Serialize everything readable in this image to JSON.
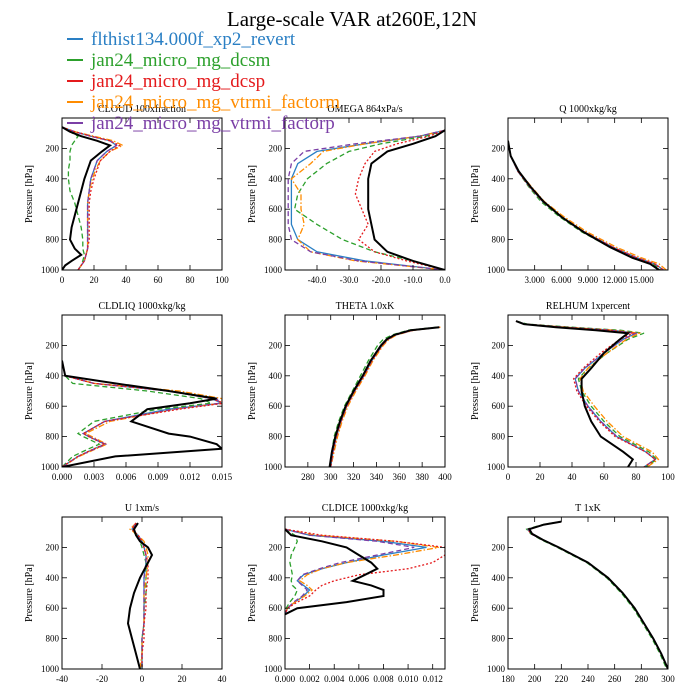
{
  "title": "Large-scale VAR at260E,12N",
  "legend": [
    {
      "label": "flthist134.000f_xp2_revert",
      "color": "#2a7fc4",
      "dash": "solid"
    },
    {
      "label": "jan24_micro_mg_dcsm",
      "color": "#2ca02c",
      "dash": "dash"
    },
    {
      "label": "jan24_micro_mg_dcsp",
      "color": "#e41a1c",
      "dash": "dot"
    },
    {
      "label": "jan24_micro_mg_vtrmi_factorm",
      "color": "#ff8c00",
      "dash": "dashdot"
    },
    {
      "label": "jan24_micro_mg_vtrmi_factorp",
      "color": "#7b3fa6",
      "dash": "dash"
    }
  ],
  "control_color": "#000000",
  "ylabel": "Pressure [hPa]",
  "chart_data": [
    {
      "type": "line",
      "title": "CLOUD  100xfraction",
      "xlim": [
        0,
        100
      ],
      "xticks": [
        0,
        20,
        40,
        60,
        80,
        100
      ],
      "xticklabels": [
        "0",
        "20",
        "40",
        "60",
        "80",
        "100"
      ],
      "ylim": [
        0,
        1000
      ],
      "yticks": [
        200,
        400,
        600,
        800,
        1000
      ],
      "p": [
        60,
        90,
        120,
        150,
        180,
        220,
        280,
        340,
        400,
        480,
        560,
        640,
        720,
        800,
        860,
        900,
        940,
        970,
        1000
      ],
      "control": [
        0,
        5,
        12,
        22,
        30,
        25,
        18,
        16,
        14,
        12,
        10,
        8,
        6,
        5,
        8,
        12,
        6,
        2,
        0
      ],
      "series": [
        [
          0,
          8,
          18,
          30,
          34,
          28,
          22,
          20,
          18,
          17,
          16,
          16,
          16,
          16,
          16,
          15,
          14,
          12,
          10
        ],
        [
          0,
          5,
          10,
          8,
          6,
          5,
          5,
          4,
          4,
          5,
          8,
          10,
          12,
          13,
          13,
          14,
          13,
          12,
          10
        ],
        [
          0,
          8,
          18,
          30,
          36,
          30,
          24,
          22,
          20,
          18,
          17,
          17,
          17,
          17,
          16,
          15,
          14,
          12,
          10
        ],
        [
          0,
          8,
          20,
          32,
          38,
          30,
          24,
          21,
          19,
          17,
          16,
          16,
          16,
          16,
          16,
          15,
          14,
          12,
          10
        ],
        [
          0,
          8,
          18,
          30,
          34,
          28,
          22,
          20,
          18,
          17,
          16,
          16,
          16,
          16,
          16,
          15,
          14,
          12,
          10
        ]
      ]
    },
    {
      "type": "line",
      "title": "OMEGA  864xPa/s",
      "xlim": [
        -50,
        0
      ],
      "xticks": [
        -40,
        -30,
        -20,
        -10,
        0
      ],
      "xticklabels": [
        "-40.0",
        "-30.0",
        "-20.0",
        "-10.0",
        "0.0"
      ],
      "ylim": [
        0,
        1000
      ],
      "yticks": [
        200,
        400,
        600,
        800,
        1000
      ],
      "p": [
        80,
        120,
        170,
        220,
        300,
        400,
        500,
        600,
        700,
        800,
        880,
        940,
        1000
      ],
      "control": [
        0,
        -3,
        -10,
        -18,
        -23,
        -24,
        -24,
        -24,
        -23,
        -22,
        -18,
        -10,
        0
      ],
      "series": [
        [
          0,
          -8,
          -25,
          -40,
          -46,
          -48,
          -48,
          -48,
          -48,
          -46,
          -40,
          -25,
          0
        ],
        [
          0,
          -6,
          -20,
          -30,
          -37,
          -43,
          -46,
          -47,
          -40,
          -32,
          -22,
          -10,
          0
        ],
        [
          0,
          -5,
          -15,
          -22,
          -25,
          -27,
          -28,
          -26,
          -24,
          -27,
          -22,
          -12,
          0
        ],
        [
          0,
          -8,
          -25,
          -38,
          -42,
          -48,
          -45,
          -45,
          -44,
          -46,
          -42,
          -28,
          0
        ],
        [
          0,
          -8,
          -28,
          -44,
          -48,
          -49,
          -49,
          -49,
          -49,
          -48,
          -42,
          -27,
          0
        ]
      ]
    },
    {
      "type": "line",
      "title": "Q  1000xkg/kg",
      "xlim": [
        0,
        18
      ],
      "xticks": [
        3,
        6,
        9,
        12,
        15
      ],
      "xticklabels": [
        "3.000",
        "6.000",
        "9.000",
        "12.000",
        "15.000"
      ],
      "ylim": [
        0,
        1000
      ],
      "yticks": [
        200,
        400,
        600,
        800,
        1000
      ],
      "p": [
        150,
        250,
        350,
        450,
        550,
        650,
        750,
        850,
        920,
        960,
        1000
      ],
      "control": [
        0,
        0.3,
        1.2,
        2.5,
        4,
        6,
        8.5,
        11.5,
        14,
        16,
        17
      ],
      "series": [
        [
          0,
          0.3,
          1.1,
          2.4,
          3.9,
          6,
          8.6,
          11.8,
          14.5,
          16.5,
          17.5
        ],
        [
          0,
          0.3,
          1.1,
          2.3,
          3.7,
          5.8,
          8.3,
          11.5,
          14.2,
          16.3,
          17.2
        ],
        [
          0,
          0.3,
          1.1,
          2.4,
          3.9,
          6,
          8.6,
          11.8,
          14.5,
          16.5,
          17.5
        ],
        [
          0,
          0.3,
          1.2,
          2.6,
          4.1,
          6.3,
          8.9,
          12.2,
          15,
          17,
          17.8
        ],
        [
          0,
          0.3,
          1.1,
          2.4,
          3.9,
          6,
          8.6,
          11.8,
          14.5,
          16.5,
          17.5
        ]
      ]
    },
    {
      "type": "line",
      "title": "CLDLIQ  1000xkg/kg",
      "xlim": [
        0,
        0.015
      ],
      "xticks": [
        0,
        0.003,
        0.006,
        0.009,
        0.012,
        0.015
      ],
      "xticklabels": [
        "0.000",
        "0.003",
        "0.006",
        "0.009",
        "0.012",
        "0.015"
      ],
      "ylim": [
        0,
        1000
      ],
      "yticks": [
        200,
        400,
        600,
        800,
        1000
      ],
      "p": [
        300,
        400,
        450,
        500,
        550,
        580,
        620,
        700,
        780,
        800,
        850,
        880,
        930,
        1000
      ],
      "control": [
        0,
        0.0003,
        0.005,
        0.01,
        0.0145,
        0.012,
        0.008,
        0.0065,
        0.01,
        0.012,
        0.0145,
        0.015,
        0.005,
        0
      ],
      "series": [
        [
          0,
          0.0003,
          0.003,
          0.01,
          0.014,
          0.015,
          0.01,
          0.004,
          0.002,
          0.0025,
          0.004,
          0.003,
          0.0015,
          0
        ],
        [
          0,
          0.0003,
          0.001,
          0.008,
          0.013,
          0.014,
          0.009,
          0.003,
          0.0015,
          0.002,
          0.0035,
          0.0025,
          0.001,
          0
        ],
        [
          0,
          0.0003,
          0.003,
          0.01,
          0.014,
          0.0152,
          0.011,
          0.004,
          0.002,
          0.0025,
          0.004,
          0.003,
          0.0015,
          0
        ],
        [
          0,
          0.0003,
          0.003,
          0.011,
          0.015,
          0.015,
          0.0105,
          0.0045,
          0.0022,
          0.0028,
          0.0042,
          0.0032,
          0.0016,
          0
        ],
        [
          0,
          0.0003,
          0.003,
          0.01,
          0.0145,
          0.0148,
          0.0105,
          0.004,
          0.002,
          0.0026,
          0.0041,
          0.0031,
          0.0015,
          0
        ]
      ]
    },
    {
      "type": "line",
      "title": "THETA  1.0xK",
      "xlim": [
        260,
        400
      ],
      "xticks": [
        280,
        300,
        320,
        340,
        360,
        380,
        400
      ],
      "xticklabels": [
        "280",
        "300",
        "320",
        "340",
        "360",
        "380",
        "400"
      ],
      "ylim": [
        0,
        1000
      ],
      "yticks": [
        200,
        400,
        600,
        800,
        1000
      ],
      "p": [
        80,
        100,
        130,
        160,
        200,
        300,
        400,
        500,
        600,
        700,
        800,
        900,
        1000
      ],
      "control": [
        395,
        370,
        356,
        349,
        344,
        335,
        328,
        320,
        313,
        308,
        304,
        301,
        299
      ],
      "series": [
        [
          395,
          372,
          357,
          350,
          345,
          336,
          329,
          321,
          314,
          309,
          305,
          302,
          300
        ],
        [
          393,
          368,
          354,
          346,
          341,
          333,
          326,
          319,
          312,
          307,
          303,
          301,
          299
        ],
        [
          395,
          372,
          357,
          350,
          345,
          336,
          329,
          321,
          314,
          309,
          305,
          302,
          300
        ],
        [
          396,
          373,
          358,
          351,
          346,
          337,
          330,
          322,
          315,
          310,
          306,
          303,
          300
        ],
        [
          395,
          372,
          357,
          350,
          345,
          336,
          329,
          321,
          314,
          309,
          305,
          302,
          300
        ]
      ]
    },
    {
      "type": "line",
      "title": "RELHUM  1xpercent",
      "xlim": [
        0,
        100
      ],
      "xticks": [
        0,
        20,
        40,
        60,
        80,
        100
      ],
      "xticklabels": [
        "0",
        "20",
        "40",
        "60",
        "80",
        "100"
      ],
      "ylim": [
        0,
        1000
      ],
      "yticks": [
        200,
        400,
        600,
        800,
        1000
      ],
      "p": [
        40,
        60,
        80,
        100,
        120,
        160,
        250,
        350,
        420,
        500,
        600,
        700,
        800,
        900,
        950,
        1000
      ],
      "control": [
        5,
        10,
        30,
        55,
        75,
        70,
        60,
        52,
        46,
        46,
        48,
        52,
        58,
        72,
        78,
        75
      ],
      "series": [
        [
          5,
          10,
          35,
          65,
          80,
          72,
          60,
          48,
          42,
          44,
          50,
          58,
          68,
          86,
          92,
          85
        ],
        [
          5,
          12,
          40,
          70,
          85,
          75,
          62,
          50,
          44,
          46,
          52,
          60,
          70,
          88,
          93,
          86
        ],
        [
          5,
          10,
          35,
          62,
          78,
          70,
          58,
          47,
          41,
          43,
          49,
          57,
          67,
          86,
          92,
          85
        ],
        [
          5,
          10,
          36,
          66,
          82,
          74,
          62,
          50,
          45,
          47,
          54,
          62,
          72,
          90,
          94,
          87
        ],
        [
          5,
          10,
          35,
          64,
          80,
          72,
          60,
          48,
          42,
          44,
          50,
          58,
          68,
          86,
          92,
          85
        ]
      ]
    },
    {
      "type": "line",
      "title": "U  1xm/s",
      "xlim": [
        -40,
        40
      ],
      "xticks": [
        -40,
        -20,
        0,
        20,
        40
      ],
      "xticklabels": [
        "-40",
        "-20",
        "0",
        "20",
        "40"
      ],
      "ylim": [
        0,
        1000
      ],
      "yticks": [
        200,
        400,
        600,
        800,
        1000
      ],
      "p": [
        40,
        80,
        120,
        160,
        200,
        250,
        300,
        400,
        500,
        600,
        700,
        800,
        900,
        1000
      ],
      "control": [
        -2,
        -4,
        -3,
        -1,
        3,
        5,
        3,
        -1,
        -4,
        -6,
        -7,
        -5,
        -3,
        -1
      ],
      "series": [
        [
          -3,
          -5,
          -2,
          0,
          1,
          2,
          2,
          1,
          1,
          1,
          1,
          0,
          0,
          0
        ],
        [
          -3,
          -5,
          -3,
          -1,
          0,
          1,
          2,
          2,
          2,
          1,
          1,
          0,
          0,
          0
        ],
        [
          -3,
          -5,
          -2,
          0,
          1,
          2,
          3,
          3,
          2,
          2,
          1,
          1,
          0,
          0
        ],
        [
          -3,
          -6,
          -2,
          1,
          2,
          3,
          3,
          2,
          1,
          1,
          1,
          0,
          0,
          -1
        ],
        [
          -3,
          -5,
          -2,
          0,
          1,
          2,
          2,
          1,
          1,
          1,
          1,
          0,
          0,
          0
        ]
      ]
    },
    {
      "type": "line",
      "title": "CLDICE  1000xkg/kg",
      "xlim": [
        0,
        0.013
      ],
      "xticks": [
        0,
        0.002,
        0.004,
        0.006,
        0.008,
        0.01,
        0.012
      ],
      "xticklabels": [
        "0.000",
        "0.002",
        "0.004",
        "0.006",
        "0.008",
        "0.010",
        "0.012"
      ],
      "ylim": [
        0,
        1000
      ],
      "yticks": [
        200,
        400,
        600,
        800,
        1000
      ],
      "p": [
        80,
        120,
        160,
        200,
        250,
        300,
        340,
        380,
        420,
        450,
        480,
        520,
        560,
        600,
        640
      ],
      "control": [
        0,
        0.0005,
        0.003,
        0.005,
        0.006,
        0.007,
        0.0075,
        0.0065,
        0.0055,
        0.007,
        0.008,
        0.008,
        0.005,
        0.001,
        0
      ],
      "series": [
        [
          0,
          0.002,
          0.008,
          0.0115,
          0.008,
          0.005,
          0.003,
          0.0015,
          0.001,
          0.0015,
          0.002,
          0.0015,
          0.0008,
          0.0002,
          0
        ],
        [
          0,
          0.0008,
          0.001,
          0.0008,
          0.0005,
          0.0004,
          0.0005,
          0.0006,
          0.0005,
          0.0006,
          0.001,
          0.0008,
          0.0004,
          0.0001,
          0
        ],
        [
          0,
          0.003,
          0.009,
          0.013,
          0.013,
          0.012,
          0.01,
          0.006,
          0.004,
          0.003,
          0.0025,
          0.002,
          0.001,
          0.0002,
          0
        ],
        [
          0,
          0.0025,
          0.009,
          0.0125,
          0.009,
          0.005,
          0.003,
          0.0018,
          0.0012,
          0.0018,
          0.0022,
          0.0016,
          0.0008,
          0.0002,
          0
        ],
        [
          0,
          0.002,
          0.0075,
          0.0105,
          0.0075,
          0.0045,
          0.0028,
          0.0014,
          0.001,
          0.0014,
          0.0018,
          0.0014,
          0.0007,
          0.0002,
          0
        ]
      ]
    },
    {
      "type": "line",
      "title": "T  1xK",
      "xlim": [
        180,
        300
      ],
      "xticks": [
        180,
        200,
        220,
        240,
        260,
        280,
        300
      ],
      "xticklabels": [
        "180",
        "200",
        "220",
        "240",
        "260",
        "280",
        "300"
      ],
      "ylim": [
        0,
        1000
      ],
      "yticks": [
        200,
        400,
        600,
        800,
        1000
      ],
      "p": [
        30,
        50,
        80,
        110,
        150,
        200,
        300,
        400,
        500,
        600,
        700,
        800,
        900,
        1000
      ],
      "control": [
        220,
        207,
        196,
        198,
        206,
        218,
        240,
        255,
        266,
        275,
        282,
        289,
        295,
        300
      ],
      "series": [
        [
          220,
          207,
          195,
          197,
          206,
          218,
          240,
          255,
          266,
          275,
          282,
          289,
          295,
          300
        ],
        [
          220,
          206,
          194,
          197,
          205,
          217,
          239,
          254,
          265,
          274,
          281,
          288,
          294,
          299
        ],
        [
          220,
          207,
          195,
          197,
          206,
          218,
          240,
          255,
          266,
          275,
          282,
          289,
          295,
          300
        ],
        [
          220,
          207,
          196,
          198,
          206,
          218,
          240,
          255,
          266,
          275,
          282,
          289,
          295,
          300
        ],
        [
          220,
          207,
          195,
          197,
          206,
          218,
          240,
          255,
          266,
          275,
          282,
          289,
          295,
          300
        ]
      ]
    }
  ]
}
